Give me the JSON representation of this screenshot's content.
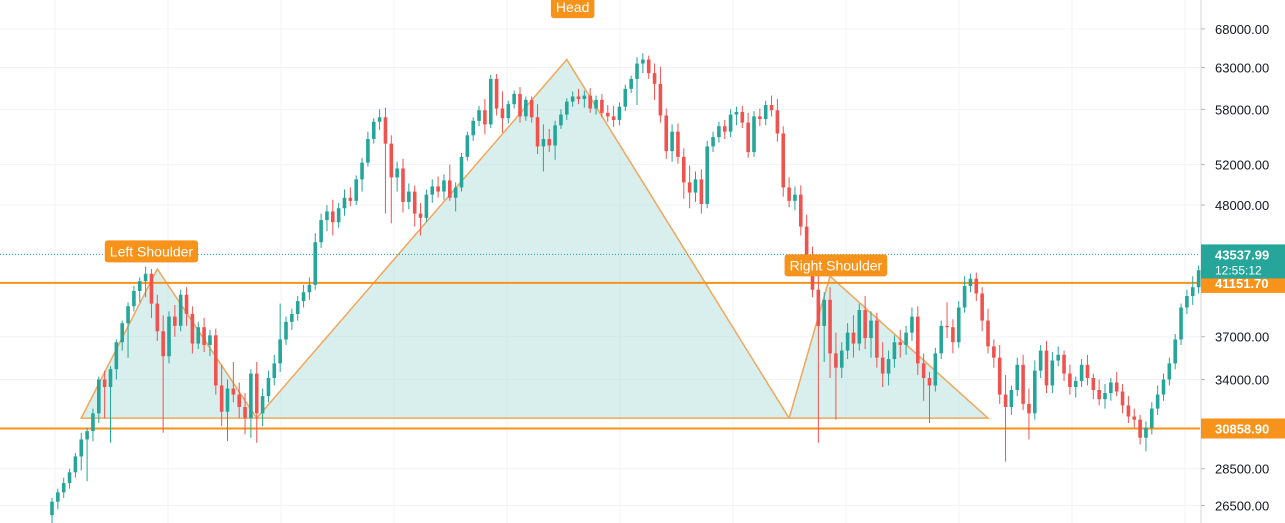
{
  "chart_data": {
    "type": "candlestick",
    "title": "",
    "y_axis": {
      "scale": "log",
      "ylim": [
        25600,
        72000
      ],
      "ticks": [
        "68000.00",
        "63000.00",
        "58000.00",
        "52000.00",
        "48000.00",
        "37000.00",
        "34000.00",
        "28500.00",
        "26500.00"
      ],
      "tick_values": [
        68000,
        63000,
        58000,
        52000,
        48000,
        37000,
        34000,
        28500,
        26500
      ],
      "position": "right"
    },
    "grid": true,
    "horizontal_levels": [
      {
        "value": 41151.7,
        "label": "41151.70",
        "color": "#f7931a"
      },
      {
        "value": 30858.9,
        "label": "30858.90",
        "color": "#f7931a"
      }
    ],
    "last_price": {
      "value": 43537.99,
      "label": "43537.99",
      "countdown": "12:55:12",
      "color": "#26a69a"
    },
    "pattern": {
      "name": "head-and-shoulders",
      "colors": {
        "fill": "#b2dfdb",
        "stroke": "#f2a65a",
        "label_bg": "#f7931a"
      },
      "labels": [
        {
          "text": "Left Shoulder",
          "anchor_index": 17,
          "anchor_value": 43800
        },
        {
          "text": "Head",
          "anchor_index": 89,
          "anchor_value": 71000
        },
        {
          "text": "Right Shoulder",
          "anchor_index": 134,
          "anchor_value": 42600
        }
      ],
      "triangles": [
        [
          [
            5,
            31500
          ],
          [
            18,
            42300
          ],
          [
            35,
            31500
          ]
        ],
        [
          [
            35,
            31500
          ],
          [
            88,
            64000
          ],
          [
            126,
            31500
          ]
        ],
        [
          [
            126,
            31500
          ],
          [
            133,
            41700
          ],
          [
            160,
            31500
          ]
        ]
      ]
    },
    "colors": {
      "up": "#26a69a",
      "down": "#ef5350"
    },
    "candles": [
      [
        26000,
        26900,
        25500,
        26700
      ],
      [
        26700,
        27400,
        26300,
        27200
      ],
      [
        27200,
        28000,
        26900,
        27700
      ],
      [
        27700,
        28500,
        27400,
        28300
      ],
      [
        28300,
        29400,
        28000,
        29200
      ],
      [
        29200,
        30600,
        28400,
        30200
      ],
      [
        30200,
        30900,
        27800,
        30700
      ],
      [
        30700,
        32100,
        30100,
        31800
      ],
      [
        31800,
        34200,
        31200,
        34000
      ],
      [
        34000,
        34600,
        31500,
        33500
      ],
      [
        33500,
        34900,
        30000,
        34700
      ],
      [
        34700,
        36800,
        34000,
        36600
      ],
      [
        36600,
        38200,
        36000,
        38000
      ],
      [
        38000,
        39600,
        35500,
        39300
      ],
      [
        39300,
        40900,
        38900,
        40500
      ],
      [
        40500,
        41600,
        39600,
        41300
      ],
      [
        41300,
        42500,
        40000,
        41900
      ],
      [
        41900,
        42300,
        38400,
        39500
      ],
      [
        39500,
        40200,
        36700,
        37400
      ],
      [
        37400,
        38600,
        30600,
        35600
      ],
      [
        35600,
        38900,
        35100,
        38500
      ],
      [
        38500,
        39400,
        37000,
        37800
      ],
      [
        37800,
        40600,
        37400,
        40200
      ],
      [
        40200,
        40800,
        37800,
        38700
      ],
      [
        38700,
        39300,
        35800,
        36500
      ],
      [
        36500,
        38100,
        36100,
        37700
      ],
      [
        37700,
        38400,
        35900,
        36400
      ],
      [
        36400,
        37500,
        35600,
        37100
      ],
      [
        37100,
        37600,
        33000,
        33600
      ],
      [
        33600,
        35000,
        31000,
        31900
      ],
      [
        31900,
        34000,
        30100,
        33400
      ],
      [
        33400,
        35200,
        32500,
        33000
      ],
      [
        33000,
        33800,
        31500,
        32200
      ],
      [
        32200,
        33100,
        30500,
        31500
      ],
      [
        31500,
        34700,
        30300,
        34400
      ],
      [
        34400,
        35200,
        30000,
        31800
      ],
      [
        31800,
        33400,
        31000,
        32900
      ],
      [
        32900,
        34600,
        32500,
        34100
      ],
      [
        34100,
        35700,
        33600,
        35100
      ],
      [
        35100,
        39500,
        34500,
        36800
      ],
      [
        36800,
        38500,
        36400,
        38100
      ],
      [
        38100,
        39100,
        37500,
        38700
      ],
      [
        38700,
        40100,
        38200,
        39700
      ],
      [
        39700,
        41000,
        39200,
        40400
      ],
      [
        40400,
        41600,
        39800,
        41000
      ],
      [
        41000,
        45400,
        40600,
        44600
      ],
      [
        44600,
        47200,
        44100,
        46600
      ],
      [
        46600,
        48000,
        45600,
        47400
      ],
      [
        47400,
        48500,
        45200,
        46400
      ],
      [
        46400,
        48200,
        45900,
        47700
      ],
      [
        47700,
        49500,
        47000,
        48700
      ],
      [
        48700,
        49700,
        47900,
        48400
      ],
      [
        48400,
        50900,
        48000,
        50500
      ],
      [
        50500,
        52700,
        49300,
        52200
      ],
      [
        52200,
        55500,
        51800,
        54700
      ],
      [
        54700,
        57000,
        54200,
        56600
      ],
      [
        56600,
        58000,
        55700,
        57100
      ],
      [
        57100,
        58200,
        47200,
        54200
      ],
      [
        54200,
        55100,
        46300,
        50700
      ],
      [
        50700,
        52300,
        49300,
        51600
      ],
      [
        51600,
        52600,
        47300,
        48300
      ],
      [
        48300,
        50100,
        47600,
        49300
      ],
      [
        49300,
        49900,
        46000,
        47200
      ],
      [
        47200,
        48200,
        45200,
        46800
      ],
      [
        46800,
        49500,
        46400,
        49000
      ],
      [
        49000,
        50500,
        48200,
        49800
      ],
      [
        49800,
        50800,
        48700,
        49300
      ],
      [
        49300,
        51000,
        48500,
        50400
      ],
      [
        50400,
        52000,
        48400,
        48700
      ],
      [
        48700,
        50200,
        47400,
        49700
      ],
      [
        49700,
        53200,
        49300,
        52800
      ],
      [
        52800,
        55500,
        52400,
        55100
      ],
      [
        55100,
        57100,
        54500,
        56700
      ],
      [
        56700,
        58400,
        56100,
        57900
      ],
      [
        57900,
        59200,
        55200,
        56300
      ],
      [
        56300,
        62100,
        55900,
        61600
      ],
      [
        61600,
        62200,
        57300,
        58100
      ],
      [
        58100,
        60100,
        55400,
        57000
      ],
      [
        57000,
        59000,
        56400,
        58600
      ],
      [
        58600,
        60200,
        58100,
        59800
      ],
      [
        59800,
        60600,
        56500,
        57200
      ],
      [
        57200,
        59500,
        56700,
        59100
      ],
      [
        59100,
        59500,
        56500,
        57100
      ],
      [
        57100,
        58600,
        53100,
        53900
      ],
      [
        53900,
        56300,
        51300,
        54700
      ],
      [
        54700,
        55800,
        53300,
        54000
      ],
      [
        54000,
        56700,
        52500,
        56200
      ],
      [
        56200,
        58000,
        55800,
        57400
      ],
      [
        57400,
        59300,
        56800,
        58900
      ],
      [
        58900,
        60100,
        58300,
        59500
      ],
      [
        59500,
        60400,
        58600,
        59200
      ],
      [
        59200,
        60200,
        58200,
        59600
      ],
      [
        59600,
        60500,
        57600,
        58100
      ],
      [
        58100,
        59600,
        57400,
        59100
      ],
      [
        59100,
        59800,
        57100,
        57600
      ],
      [
        57600,
        58500,
        56600,
        57200
      ],
      [
        57200,
        58400,
        56000,
        56800
      ],
      [
        56800,
        58800,
        56200,
        58300
      ],
      [
        58300,
        60900,
        57800,
        60400
      ],
      [
        60400,
        62000,
        59900,
        61600
      ],
      [
        61600,
        64300,
        58500,
        63500
      ],
      [
        63500,
        64800,
        62300,
        64000
      ],
      [
        64000,
        64500,
        61600,
        62300
      ],
      [
        62300,
        63500,
        59100,
        61000
      ],
      [
        61000,
        63100,
        56500,
        57300
      ],
      [
        57300,
        58100,
        52600,
        53400
      ],
      [
        53400,
        56300,
        52300,
        55500
      ],
      [
        55500,
        56400,
        52100,
        52800
      ],
      [
        52800,
        53700,
        48600,
        50200
      ],
      [
        50200,
        51900,
        47700,
        49200
      ],
      [
        49200,
        51300,
        48300,
        50500
      ],
      [
        50500,
        51500,
        47200,
        48100
      ],
      [
        48100,
        54500,
        47700,
        53900
      ],
      [
        53900,
        55500,
        53300,
        54900
      ],
      [
        54900,
        56600,
        54300,
        56100
      ],
      [
        56100,
        56800,
        54700,
        55500
      ],
      [
        55500,
        58000,
        54900,
        57400
      ],
      [
        57400,
        58300,
        56200,
        57700
      ],
      [
        57700,
        58400,
        55900,
        56500
      ],
      [
        56500,
        57600,
        52700,
        53300
      ],
      [
        53300,
        57800,
        52800,
        57200
      ],
      [
        57200,
        58100,
        56100,
        56900
      ],
      [
        56900,
        59000,
        56200,
        58500
      ],
      [
        58500,
        59600,
        57200,
        57900
      ],
      [
        57900,
        59200,
        54400,
        55300
      ],
      [
        55300,
        56100,
        48800,
        49700
      ],
      [
        49700,
        50700,
        47800,
        48400
      ],
      [
        48400,
        49800,
        47500,
        49000
      ],
      [
        49000,
        49900,
        45200,
        46000
      ],
      [
        46000,
        47100,
        42400,
        43300
      ],
      [
        43300,
        44200,
        40000,
        40600
      ],
      [
        40600,
        41800,
        30000,
        37800
      ],
      [
        37800,
        40400,
        35200,
        39800
      ],
      [
        39800,
        40800,
        34100,
        35800
      ],
      [
        35800,
        37300,
        31400,
        34800
      ],
      [
        34800,
        36600,
        34100,
        36000
      ],
      [
        36000,
        38000,
        35400,
        37300
      ],
      [
        37300,
        38600,
        35500,
        36500
      ],
      [
        36500,
        39500,
        36000,
        39000
      ],
      [
        39000,
        40100,
        36100,
        36900
      ],
      [
        36900,
        38900,
        35500,
        38200
      ],
      [
        38200,
        38800,
        34800,
        35500
      ],
      [
        35500,
        36600,
        33500,
        34400
      ],
      [
        34400,
        36000,
        33600,
        35400
      ],
      [
        35400,
        37100,
        34800,
        36600
      ],
      [
        36600,
        37500,
        35500,
        36400
      ],
      [
        36400,
        37800,
        35700,
        37300
      ],
      [
        37300,
        39200,
        36700,
        38500
      ],
      [
        38500,
        39300,
        34300,
        35100
      ],
      [
        35100,
        35800,
        32600,
        34100
      ],
      [
        34100,
        34500,
        31200,
        33600
      ],
      [
        33600,
        36200,
        33200,
        35800
      ],
      [
        35800,
        38200,
        35400,
        37800
      ],
      [
        37800,
        39600,
        36900,
        37700
      ],
      [
        37700,
        38300,
        35800,
        36600
      ],
      [
        36600,
        39700,
        36200,
        39200
      ],
      [
        39200,
        41700,
        38800,
        40900
      ],
      [
        40900,
        41900,
        40400,
        41500
      ],
      [
        41500,
        42000,
        39700,
        40300
      ],
      [
        40300,
        40800,
        37400,
        38200
      ],
      [
        38200,
        39100,
        35800,
        36300
      ],
      [
        36300,
        36800,
        34800,
        35500
      ],
      [
        35500,
        36400,
        32400,
        33000
      ],
      [
        33000,
        34300,
        28900,
        32200
      ],
      [
        32200,
        33600,
        31700,
        33300
      ],
      [
        33300,
        35500,
        32900,
        35000
      ],
      [
        35000,
        35700,
        32000,
        32400
      ],
      [
        32400,
        33400,
        30200,
        31800
      ],
      [
        31800,
        35300,
        31400,
        34600
      ],
      [
        34600,
        36400,
        34100,
        36000
      ],
      [
        36000,
        36700,
        33100,
        33600
      ],
      [
        33600,
        35900,
        33100,
        35300
      ],
      [
        35300,
        36300,
        34900,
        35700
      ],
      [
        35700,
        36000,
        33900,
        34400
      ],
      [
        34400,
        35000,
        33000,
        33500
      ],
      [
        33500,
        34200,
        32800,
        33900
      ],
      [
        33900,
        35400,
        33500,
        35000
      ],
      [
        35000,
        35700,
        33600,
        34100
      ],
      [
        34100,
        34400,
        32700,
        33300
      ],
      [
        33300,
        34000,
        32300,
        32700
      ],
      [
        32700,
        33700,
        32100,
        33100
      ],
      [
        33100,
        34100,
        32600,
        33800
      ],
      [
        33800,
        34500,
        32900,
        33200
      ],
      [
        33200,
        33700,
        31800,
        32300
      ],
      [
        32300,
        32900,
        31200,
        31600
      ],
      [
        31600,
        32100,
        30900,
        31400
      ],
      [
        31400,
        31700,
        29900,
        30300
      ],
      [
        30300,
        31300,
        29500,
        30900
      ],
      [
        30900,
        32500,
        30500,
        32100
      ],
      [
        32100,
        33600,
        31700,
        33000
      ],
      [
        33000,
        34400,
        32600,
        34000
      ],
      [
        34000,
        35500,
        33600,
        35100
      ],
      [
        35100,
        37200,
        34700,
        36800
      ],
      [
        36800,
        39500,
        36400,
        39200
      ],
      [
        39200,
        40600,
        38700,
        40100
      ],
      [
        40100,
        41700,
        39400,
        40800
      ],
      [
        40800,
        42600,
        40300,
        42200
      ],
      [
        42200,
        42800,
        41100,
        41600
      ],
      [
        41600,
        42100,
        38800,
        39400
      ],
      [
        39400,
        40100,
        37800,
        38500
      ],
      [
        38500,
        39600,
        37400,
        39200
      ],
      [
        39200,
        41300,
        38300,
        40900
      ],
      [
        40900,
        43200,
        40500,
        42900
      ],
      [
        42900,
        44000,
        42600,
        43538
      ]
    ]
  }
}
